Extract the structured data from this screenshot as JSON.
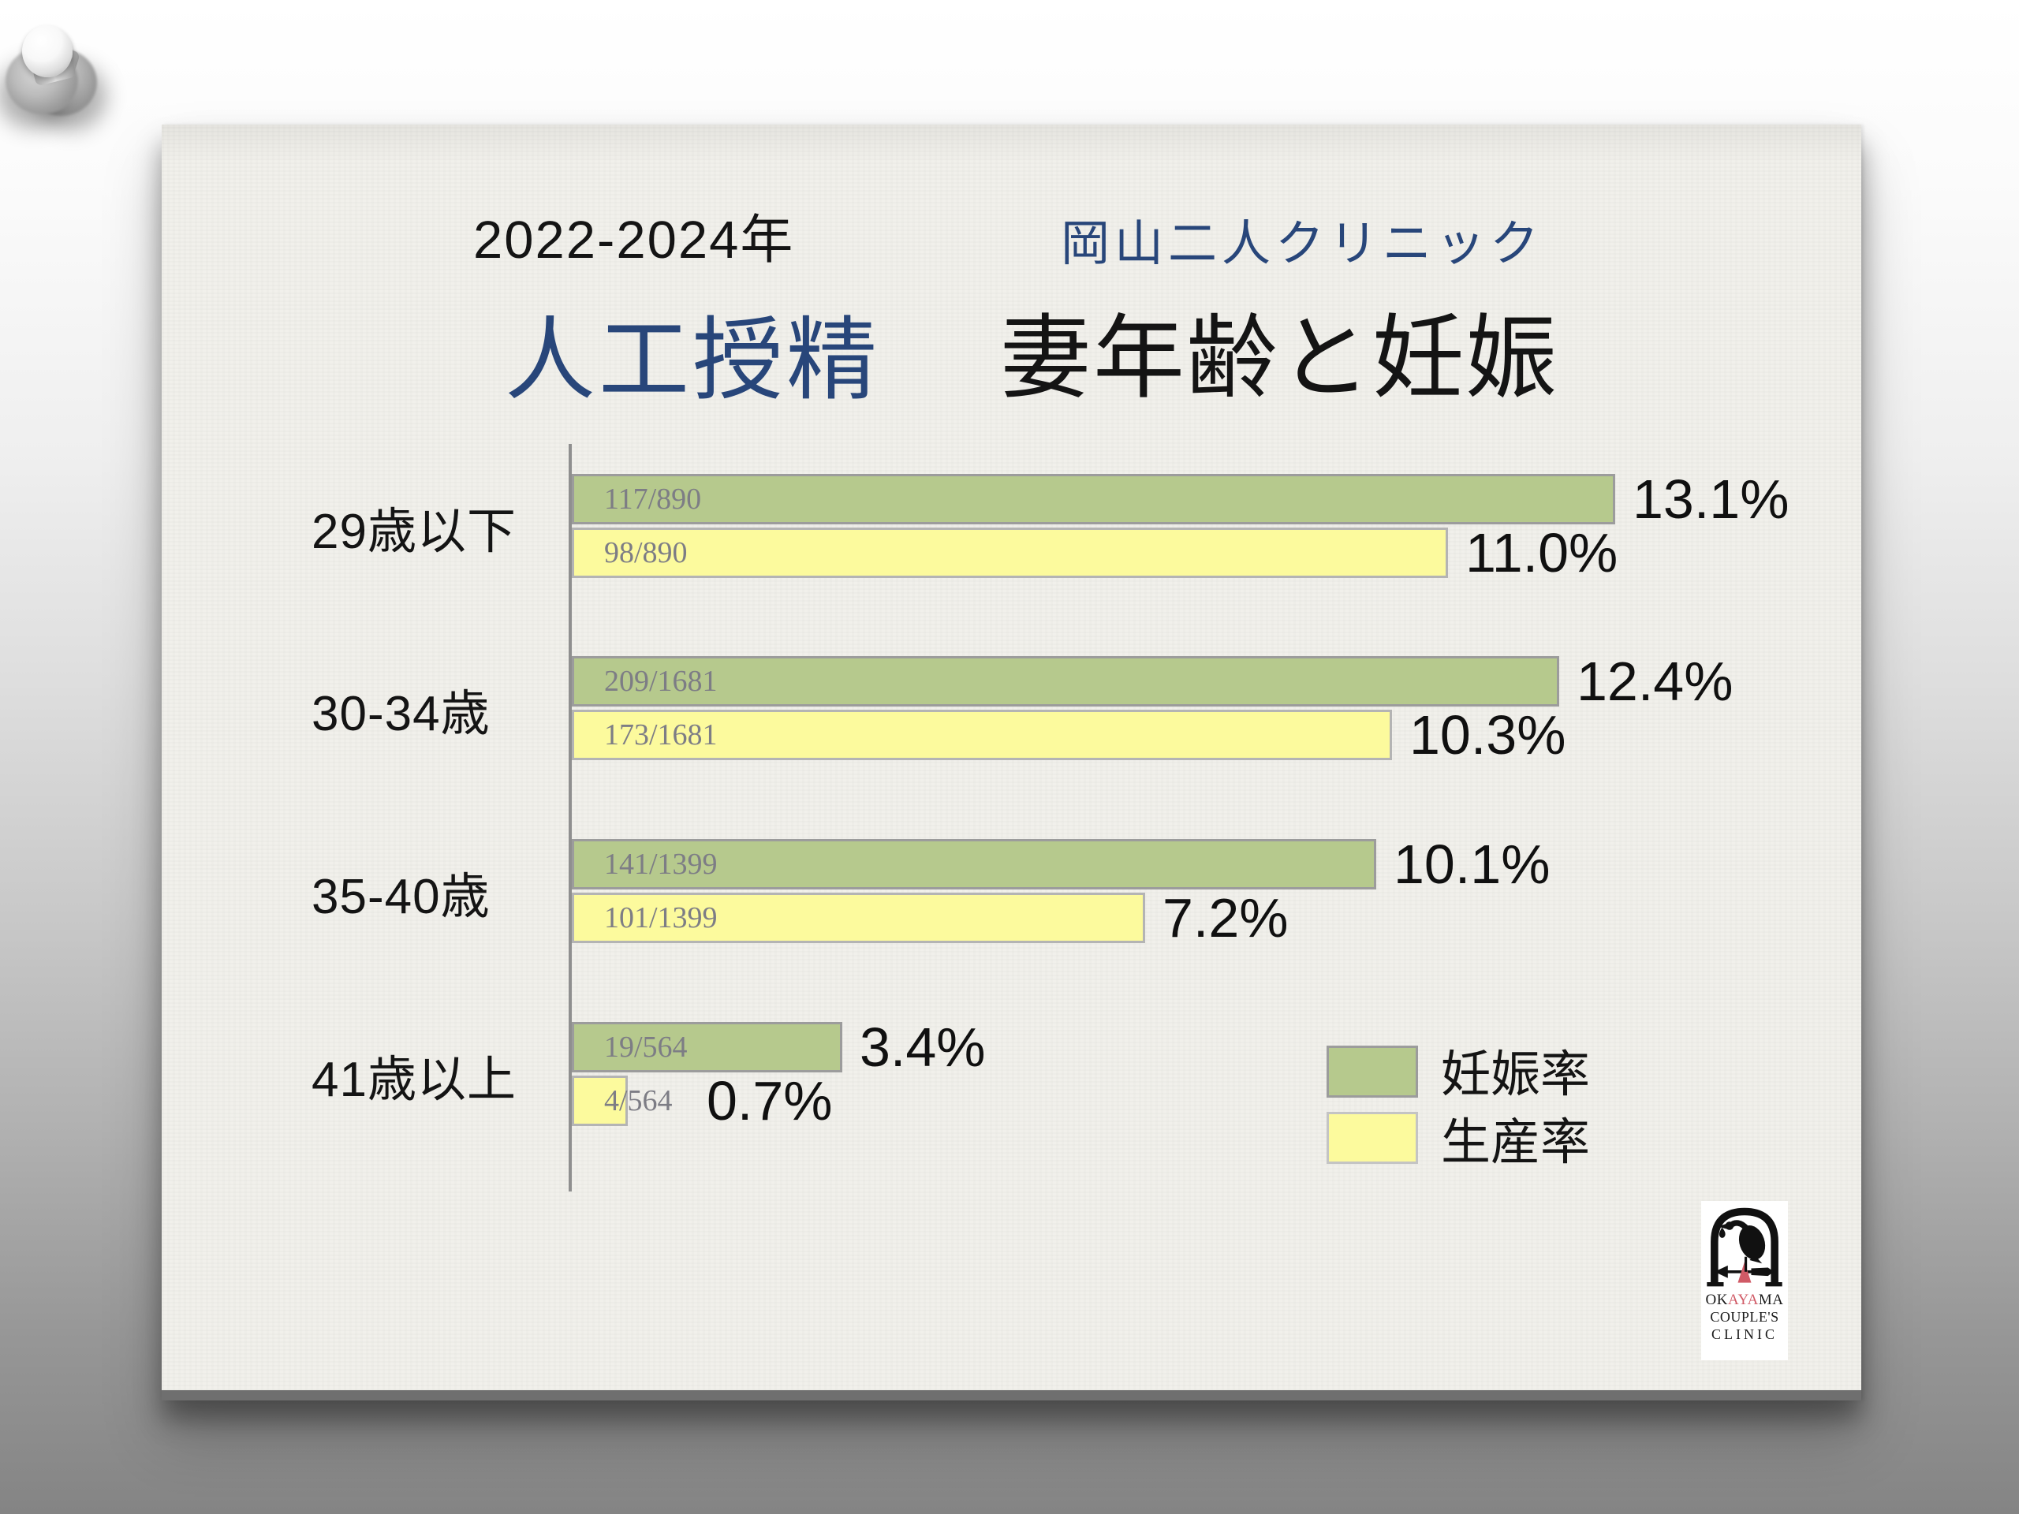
{
  "header": {
    "period": "2022-2024年",
    "clinic": "岡山二人クリニック"
  },
  "title": {
    "left": "人工授精",
    "right": "妻年齢と妊娠"
  },
  "chart_data": {
    "type": "bar",
    "orientation": "horizontal",
    "title": "人工授精 妻年齢と妊娠 2022-2024年 岡山二人クリニック",
    "categories": [
      "29歳以下",
      "30-34歳",
      "35-40歳",
      "41歳以上"
    ],
    "series": [
      {
        "name": "妊娠率",
        "color": "#b6c98d",
        "values": [
          13.1,
          12.4,
          10.1,
          3.4
        ],
        "labels": [
          "13.1%",
          "12.4%",
          "10.1%",
          "3.4%"
        ],
        "fractions": [
          "117/890",
          "209/1681",
          "141/1399",
          "19/564"
        ]
      },
      {
        "name": "生産率",
        "color": "#fcfa9d",
        "values": [
          11.0,
          10.3,
          7.2,
          0.7
        ],
        "labels": [
          "11.0%",
          "10.3%",
          "7.2%",
          "0.7%"
        ],
        "fractions": [
          "98/890",
          "173/1681",
          "101/1399",
          "4/564"
        ]
      }
    ],
    "xlim": [
      0,
      14
    ],
    "x_unit": "%",
    "grid": false,
    "legend_position": "bottom-right"
  },
  "logo": {
    "okayama_prefix": "OK",
    "okayama_red": "AYA",
    "okayama_suffix": "MA",
    "line2": "COUPLE'S",
    "line3": "CLINIC"
  },
  "colors": {
    "accent_blue": "#28467a",
    "pregnancy_green": "#b6c98d",
    "live_birth_yellow": "#fcfa9d",
    "fraction_text": "#7d7d85",
    "paper": "#f1f0eb",
    "logo_red": "#d05a66"
  }
}
